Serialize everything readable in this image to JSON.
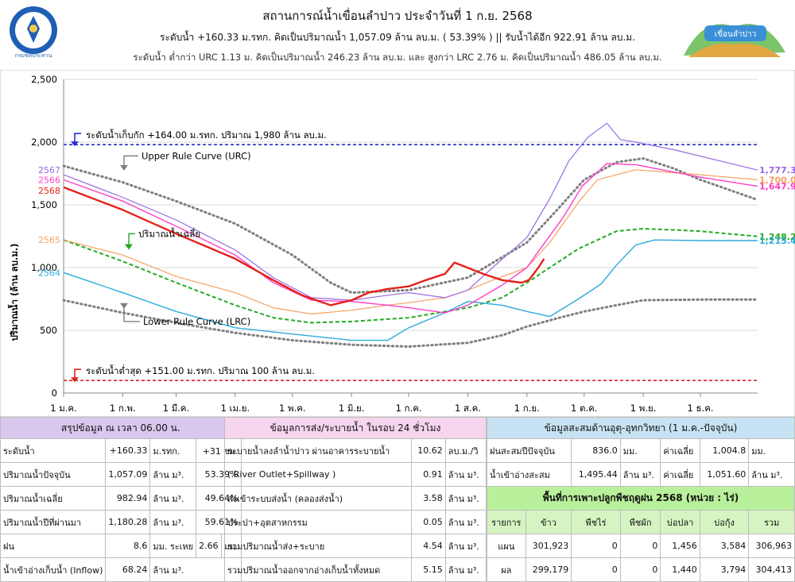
{
  "header": {
    "title": "สถานการณ์น้ำเขื่อนลำปาว ประจำวันที่ 1 ก.ย. 2568",
    "line1": "ระดับน้ำ +160.33 ม.รทก.  คิดเป็นปริมาณน้ำ 1,057.09 ล้าน ลบ.ม. ( 53.39% )  || รับน้ำได้อีก 922.91 ล้าน ลบ.ม.",
    "line2": "ระดับน้ำ ต่ำกว่า URC 1.13 ม. คิดเป็นปริมาณน้ำ 246.23 ล้าน ลบ.ม. และ สูงกว่า LRC 2.76 ม. คิดเป็นปริมาณน้ำ 486.05 ล้าน ลบ.ม.",
    "left_logo_text": "กรมชลประทาน",
    "right_logo_text": "เขื่อนลำปาว"
  },
  "chart_data": {
    "type": "line",
    "ylabel": "ปริมาณน้ำ (ล้าน ลบ.ม.)",
    "ylim": [
      0,
      2500
    ],
    "yticks": [
      0,
      500,
      1000,
      1500,
      2000,
      2500
    ],
    "ytick_labels": [
      "0",
      "500",
      "1,000",
      "1,500",
      "2,000",
      "2,500"
    ],
    "x_ticks": [
      "1 ม.ค.",
      "1 ก.พ.",
      "1 มี.ค.",
      "1 เม.ย.",
      "1 พ.ค.",
      "1 มิ.ย.",
      "1 ก.ค.",
      "1 ส.ค.",
      "1 ก.ย.",
      "1 ต.ค.",
      "1 พ.ย.",
      "1 ธ.ค."
    ],
    "x_tick_days": [
      0,
      31,
      59,
      90,
      120,
      151,
      181,
      212,
      243,
      273,
      304,
      334
    ],
    "x_max_day": 364,
    "hlines": [
      {
        "value": 1980,
        "color": "#2b2bd6",
        "label": "ระดับน้ำเก็บกัก +164.00 ม.รทก. ปริมาณ 1,980 ล้าน ลบ.ม."
      },
      {
        "value": 100,
        "color": "#e02020",
        "label": "ระดับน้ำต่ำสุด +151.00 ม.รทก. ปริมาณ 100 ล้าน ลบ.ม."
      }
    ],
    "annotations": {
      "urc": "Upper Rule Curve (URC)",
      "lrc": "Lower Rule Curve (LRC)",
      "avg": "ปริมาณน้ำเฉลี่ย"
    },
    "series": [
      {
        "name": "Upper Rule Curve (URC)",
        "color": "#7f7f7f",
        "style": "dotted",
        "width": 3,
        "points": [
          [
            0,
            1810
          ],
          [
            31,
            1680
          ],
          [
            59,
            1530
          ],
          [
            90,
            1350
          ],
          [
            120,
            1100
          ],
          [
            140,
            880
          ],
          [
            151,
            800
          ],
          [
            181,
            820
          ],
          [
            212,
            920
          ],
          [
            243,
            1200
          ],
          [
            260,
            1480
          ],
          [
            273,
            1700
          ],
          [
            290,
            1840
          ],
          [
            304,
            1870
          ],
          [
            320,
            1790
          ],
          [
            334,
            1700
          ],
          [
            364,
            1540
          ]
        ]
      },
      {
        "name": "Lower Rule Curve (LRC)",
        "color": "#7f7f7f",
        "style": "dotted",
        "width": 3,
        "points": [
          [
            0,
            740
          ],
          [
            31,
            640
          ],
          [
            59,
            560
          ],
          [
            90,
            480
          ],
          [
            120,
            420
          ],
          [
            151,
            385
          ],
          [
            181,
            370
          ],
          [
            212,
            400
          ],
          [
            230,
            460
          ],
          [
            243,
            530
          ],
          [
            260,
            600
          ],
          [
            273,
            650
          ],
          [
            290,
            700
          ],
          [
            304,
            740
          ],
          [
            334,
            745
          ],
          [
            364,
            745
          ]
        ]
      },
      {
        "name": "ปริมาณน้ำเฉลี่ย",
        "color": "#22aa22",
        "style": "dashed",
        "width": 2,
        "points": [
          [
            0,
            1220
          ],
          [
            31,
            1050
          ],
          [
            59,
            880
          ],
          [
            90,
            700
          ],
          [
            110,
            600
          ],
          [
            130,
            560
          ],
          [
            151,
            570
          ],
          [
            181,
            600
          ],
          [
            212,
            680
          ],
          [
            230,
            760
          ],
          [
            243,
            880
          ],
          [
            255,
            1000
          ],
          [
            270,
            1150
          ],
          [
            290,
            1290
          ],
          [
            304,
            1310
          ],
          [
            320,
            1300
          ],
          [
            334,
            1290
          ],
          [
            364,
            1248
          ]
        ],
        "end_label": "1,248.27"
      },
      {
        "name": "2564",
        "color": "#2eaadc",
        "style": "solid",
        "width": 1.4,
        "points": [
          [
            0,
            960
          ],
          [
            31,
            800
          ],
          [
            59,
            650
          ],
          [
            90,
            520
          ],
          [
            120,
            470
          ],
          [
            151,
            420
          ],
          [
            170,
            420
          ],
          [
            181,
            520
          ],
          [
            200,
            640
          ],
          [
            212,
            730
          ],
          [
            230,
            700
          ],
          [
            243,
            650
          ],
          [
            255,
            610
          ],
          [
            270,
            750
          ],
          [
            282,
            870
          ],
          [
            290,
            1020
          ],
          [
            300,
            1180
          ],
          [
            310,
            1220
          ],
          [
            334,
            1215
          ],
          [
            364,
            1215
          ]
        ],
        "end_label": "1,215.45"
      },
      {
        "name": "2565",
        "color": "#f4a261",
        "style": "solid",
        "width": 1.2,
        "points": [
          [
            0,
            1220
          ],
          [
            31,
            1100
          ],
          [
            59,
            930
          ],
          [
            90,
            800
          ],
          [
            110,
            680
          ],
          [
            130,
            630
          ],
          [
            151,
            660
          ],
          [
            170,
            700
          ],
          [
            181,
            720
          ],
          [
            200,
            760
          ],
          [
            212,
            820
          ],
          [
            225,
            900
          ],
          [
            243,
            1000
          ],
          [
            255,
            1200
          ],
          [
            270,
            1520
          ],
          [
            280,
            1700
          ],
          [
            300,
            1780
          ],
          [
            334,
            1740
          ],
          [
            364,
            1700
          ]
        ],
        "end_label": "1,700.00"
      },
      {
        "name": "2566",
        "color": "#ff3ec8",
        "style": "solid",
        "width": 1.4,
        "points": [
          [
            0,
            1700
          ],
          [
            31,
            1530
          ],
          [
            59,
            1330
          ],
          [
            90,
            1100
          ],
          [
            110,
            880
          ],
          [
            130,
            740
          ],
          [
            151,
            730
          ],
          [
            170,
            700
          ],
          [
            181,
            680
          ],
          [
            200,
            640
          ],
          [
            212,
            700
          ],
          [
            230,
            860
          ],
          [
            243,
            1000
          ],
          [
            250,
            1150
          ],
          [
            262,
            1400
          ],
          [
            272,
            1650
          ],
          [
            285,
            1830
          ],
          [
            300,
            1820
          ],
          [
            334,
            1720
          ],
          [
            364,
            1648
          ]
        ],
        "end_label": "1,647.93"
      },
      {
        "name": "2567",
        "color": "#9b6be5",
        "style": "solid",
        "width": 1.2,
        "points": [
          [
            0,
            1740
          ],
          [
            31,
            1560
          ],
          [
            59,
            1380
          ],
          [
            90,
            1140
          ],
          [
            110,
            920
          ],
          [
            130,
            760
          ],
          [
            151,
            740
          ],
          [
            170,
            780
          ],
          [
            181,
            800
          ],
          [
            200,
            760
          ],
          [
            212,
            820
          ],
          [
            225,
            1000
          ],
          [
            243,
            1240
          ],
          [
            255,
            1550
          ],
          [
            265,
            1850
          ],
          [
            275,
            2040
          ],
          [
            285,
            2150
          ],
          [
            292,
            2020
          ],
          [
            300,
            2000
          ],
          [
            320,
            1940
          ],
          [
            364,
            1777
          ]
        ],
        "end_label": "1,777.39"
      },
      {
        "name": "2568",
        "color": "#e3221b",
        "style": "solid",
        "width": 2.4,
        "points": [
          [
            0,
            1640
          ],
          [
            31,
            1460
          ],
          [
            59,
            1270
          ],
          [
            90,
            1070
          ],
          [
            110,
            900
          ],
          [
            125,
            780
          ],
          [
            140,
            700
          ],
          [
            151,
            740
          ],
          [
            160,
            800
          ],
          [
            170,
            830
          ],
          [
            181,
            850
          ],
          [
            190,
            900
          ],
          [
            200,
            950
          ],
          [
            205,
            1040
          ],
          [
            210,
            1010
          ],
          [
            220,
            950
          ],
          [
            230,
            900
          ],
          [
            240,
            880
          ],
          [
            244,
            900
          ],
          [
            249,
            1000
          ],
          [
            252,
            1070
          ]
        ]
      }
    ]
  },
  "tables": {
    "summary": {
      "header": "สรุปข้อมูล ณ เวลา 06.00 น.",
      "rows": [
        [
          "ระดับน้ำ",
          "+160.33",
          "ม.รทก.",
          "+31 ซม."
        ],
        [
          "ปริมาณน้ำปัจจุบัน",
          "1,057.09",
          "ล้าน ม³.",
          "53.39%"
        ],
        [
          "ปริมาณน้ำเฉลี่ย",
          "982.94",
          "ล้าน ม³.",
          "49.64%"
        ],
        [
          "ปริมาณน้ำปีที่ผ่านมา",
          "1,180.28",
          "ล้าน ม³.",
          "59.61%"
        ],
        [
          "ฝน",
          "8.6",
          "มม. ระเหย",
          "2.66",
          "มม."
        ],
        [
          "น้ำเข้าอ่างเก็บน้ำ (Inflow)",
          "68.24",
          "ล้าน ม³."
        ]
      ]
    },
    "release": {
      "header": "ข้อมูลการส่ง/ระบายน้ำ ในรอบ 24 ชั่วโมง",
      "rows": [
        [
          "ระบายน้ำลงลำน้ำปาว ผ่านอาคารระบายน้ำ",
          "10.62",
          "ลบ.ม./วิ"
        ],
        [
          "( River Outlet+Spillway )",
          "0.91",
          "ล้าน ม³."
        ],
        [
          "ส่งเข้าระบบส่งน้ำ (คลองส่งน้ำ)",
          "3.58",
          "ล้าน ม³."
        ],
        [
          "ประปา+อุตสาหกรรม",
          "0.05",
          "ล้าน ม³."
        ],
        [
          "รวมปริมาณน้ำส่ง+ระบาย",
          "4.54",
          "ล้าน ม³."
        ],
        [
          "รวมปริมาณน้ำออกจากอ่างเก็บน้ำทั้งหมด",
          "5.15",
          "ล้าน ม³."
        ]
      ]
    },
    "hydro": {
      "header": "ข้อมูลสะสมด้านอุตุ-อุทกวิทยา (1 ม.ค.-ปัจจุบัน)",
      "rows": [
        [
          "ฝนสะสมปีปัจจุบัน",
          "836.0",
          "มม.",
          "ค่าเฉลี่ย",
          "1,004.8",
          "มม."
        ],
        [
          "น้ำเข้าอ่างสะสม",
          "1,495.44",
          "ล้าน ม³.",
          "ค่าเฉลี่ย",
          "1,051.60",
          "ล้าน ม³."
        ]
      ]
    },
    "crops": {
      "header": "พื้นที่การเพาะปลูกพืชฤดูฝน 2568 (หน่วย : ไร่)",
      "columns": [
        "รายการ",
        "ข้าว",
        "พืชไร่",
        "พืชผัก",
        "บ่อปลา",
        "บ่อกุ้ง",
        "รวม"
      ],
      "rows": [
        [
          "แผน",
          "301,923",
          "0",
          "0",
          "1,456",
          "3,584",
          "306,963"
        ],
        [
          "ผล",
          "299,179",
          "0",
          "0",
          "1,440",
          "3,794",
          "304,413"
        ]
      ]
    }
  }
}
